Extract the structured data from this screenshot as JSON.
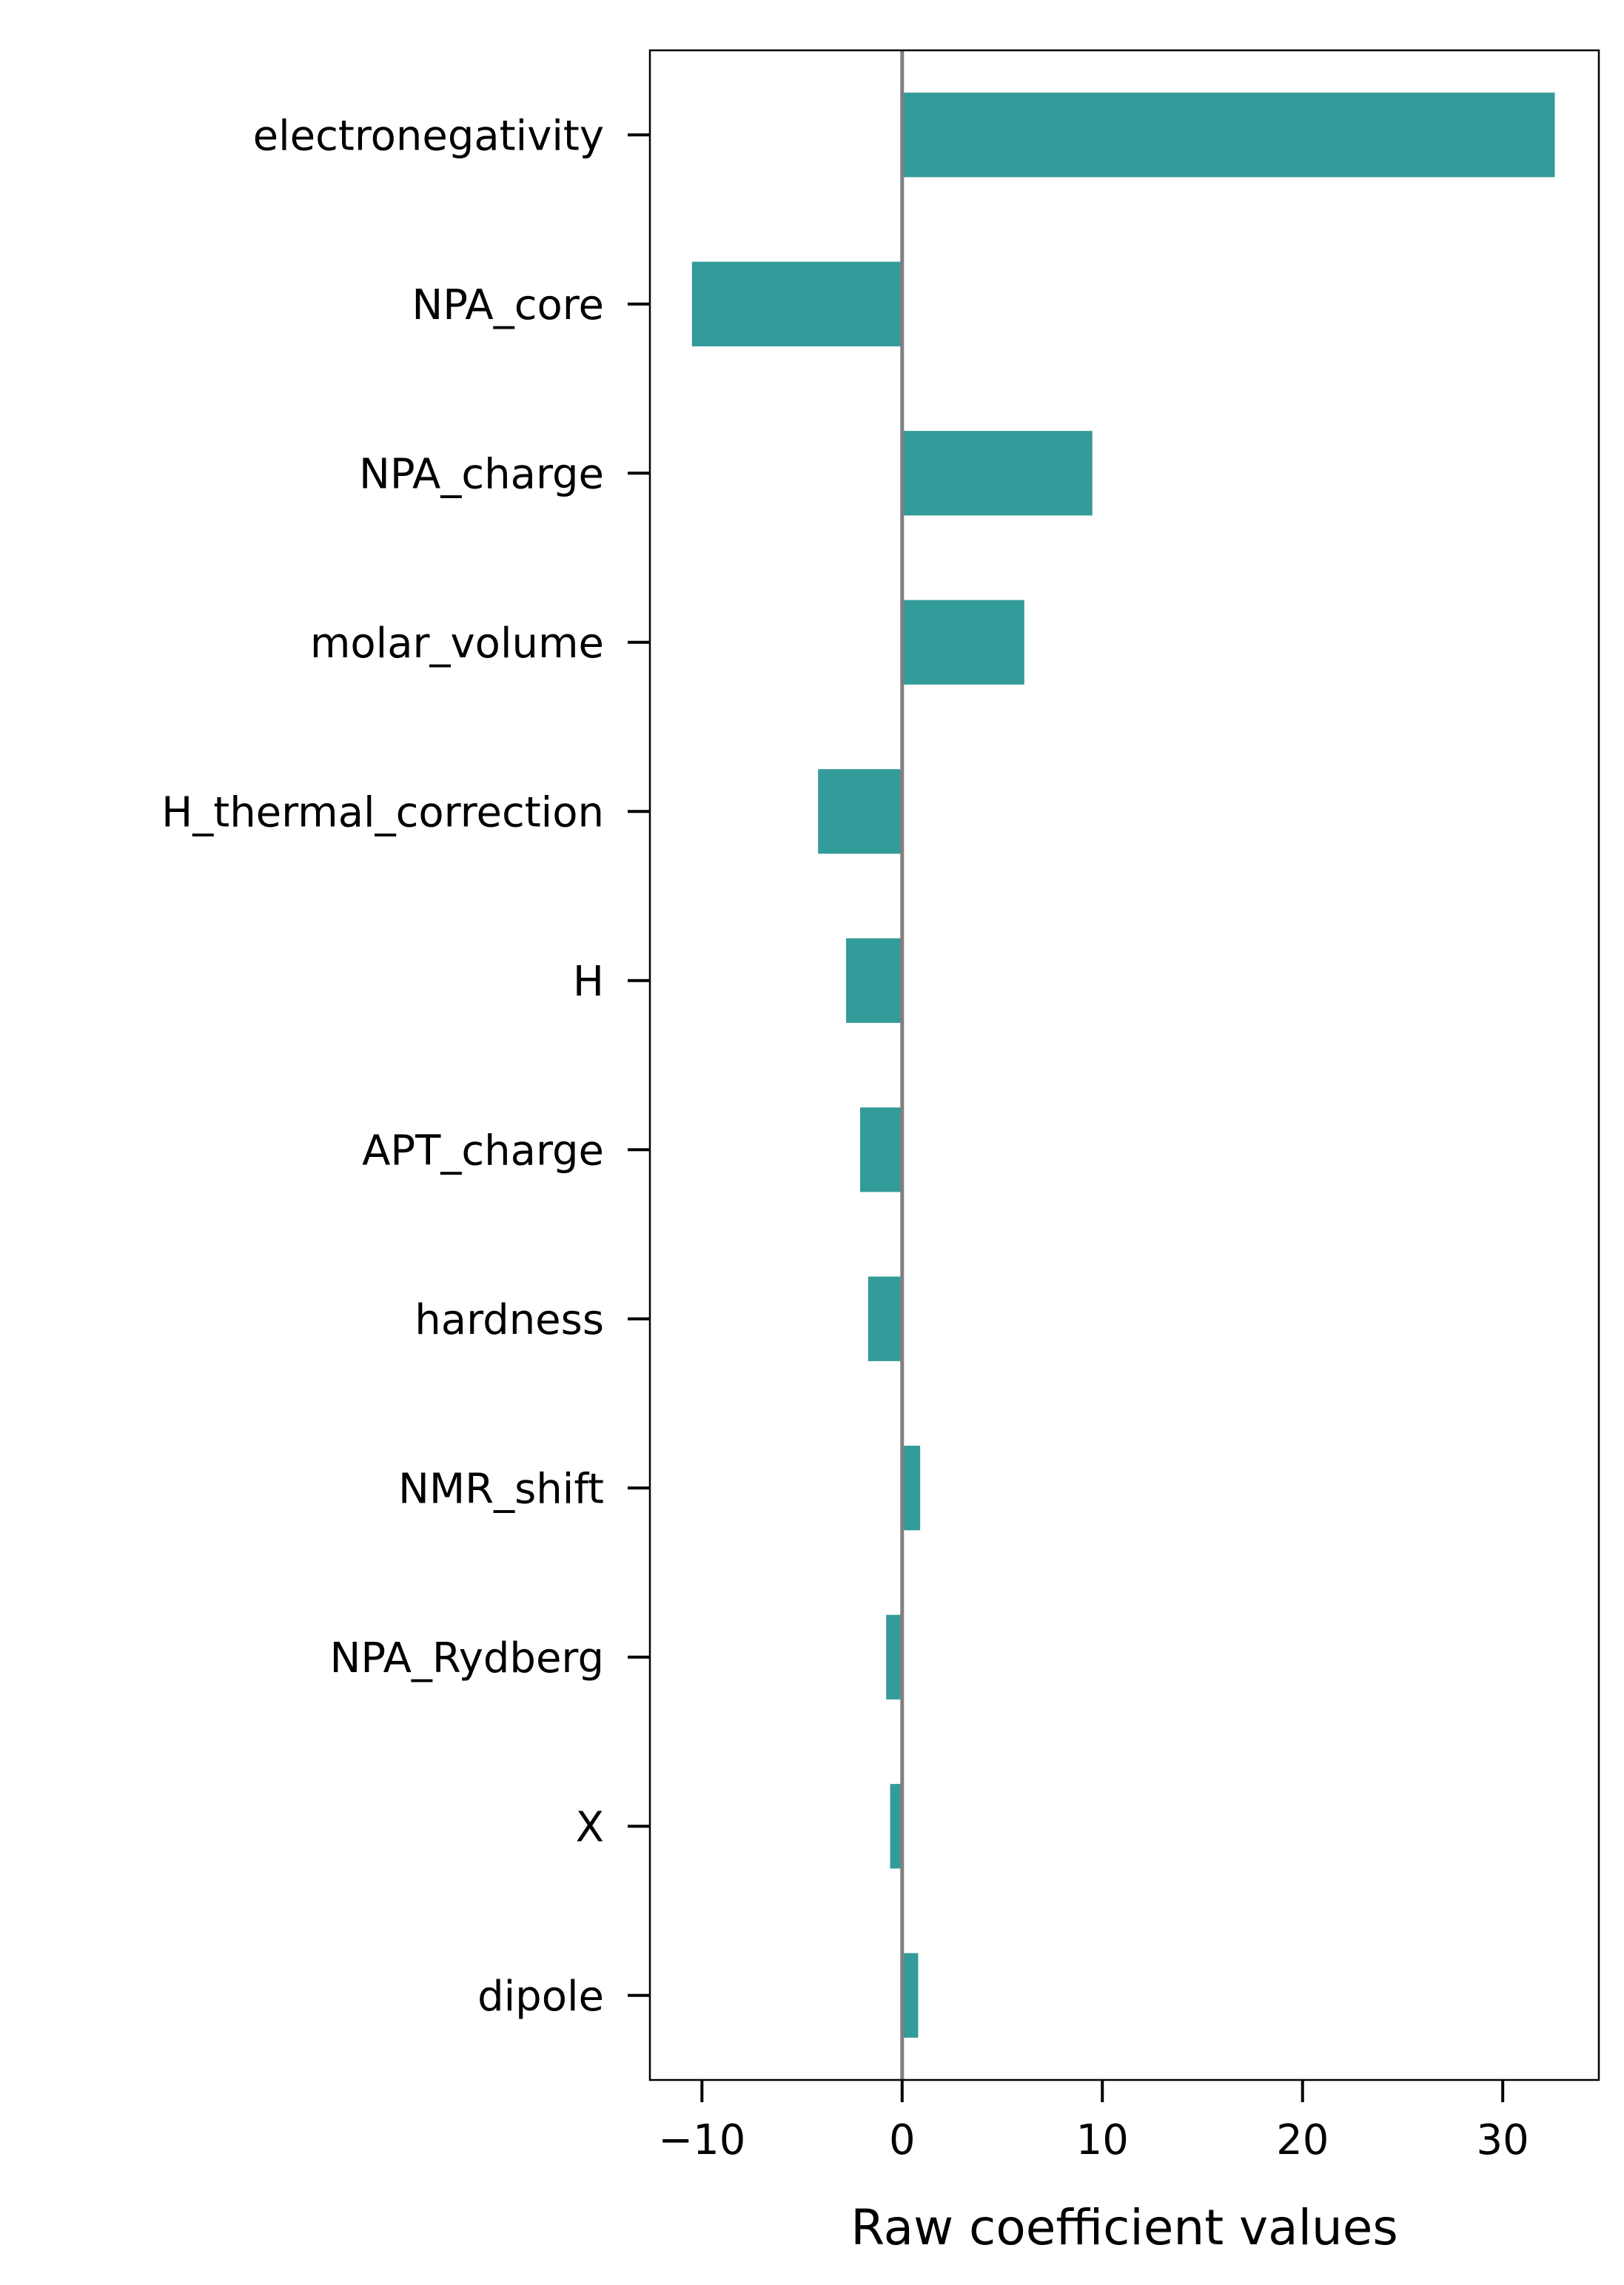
{
  "chart_data": {
    "type": "bar",
    "orientation": "horizontal",
    "categories": [
      "electronegativity",
      "NPA_core",
      "NPA_charge",
      "molar_volume",
      "H_thermal_correction",
      "H",
      "APT_charge",
      "hardness",
      "NMR_shift",
      "NPA_Rydberg",
      "X",
      "dipole"
    ],
    "values": [
      32.6,
      -10.5,
      9.5,
      6.1,
      -4.2,
      -2.8,
      -2.1,
      -1.7,
      0.9,
      -0.8,
      -0.6,
      0.8
    ],
    "title": "",
    "xlabel": "Raw coefficient values",
    "ylabel": "",
    "xlim": [
      -12.6,
      34.8
    ],
    "xticks": [
      -10,
      0,
      10,
      20,
      30
    ],
    "xtick_labels": [
      "−10",
      "0",
      "10",
      "20",
      "30"
    ],
    "zero_line": true,
    "grid": false,
    "legend": "none",
    "colors": {
      "bar": "#339b99",
      "zero_line": "#808080",
      "axes": "#000000"
    }
  }
}
